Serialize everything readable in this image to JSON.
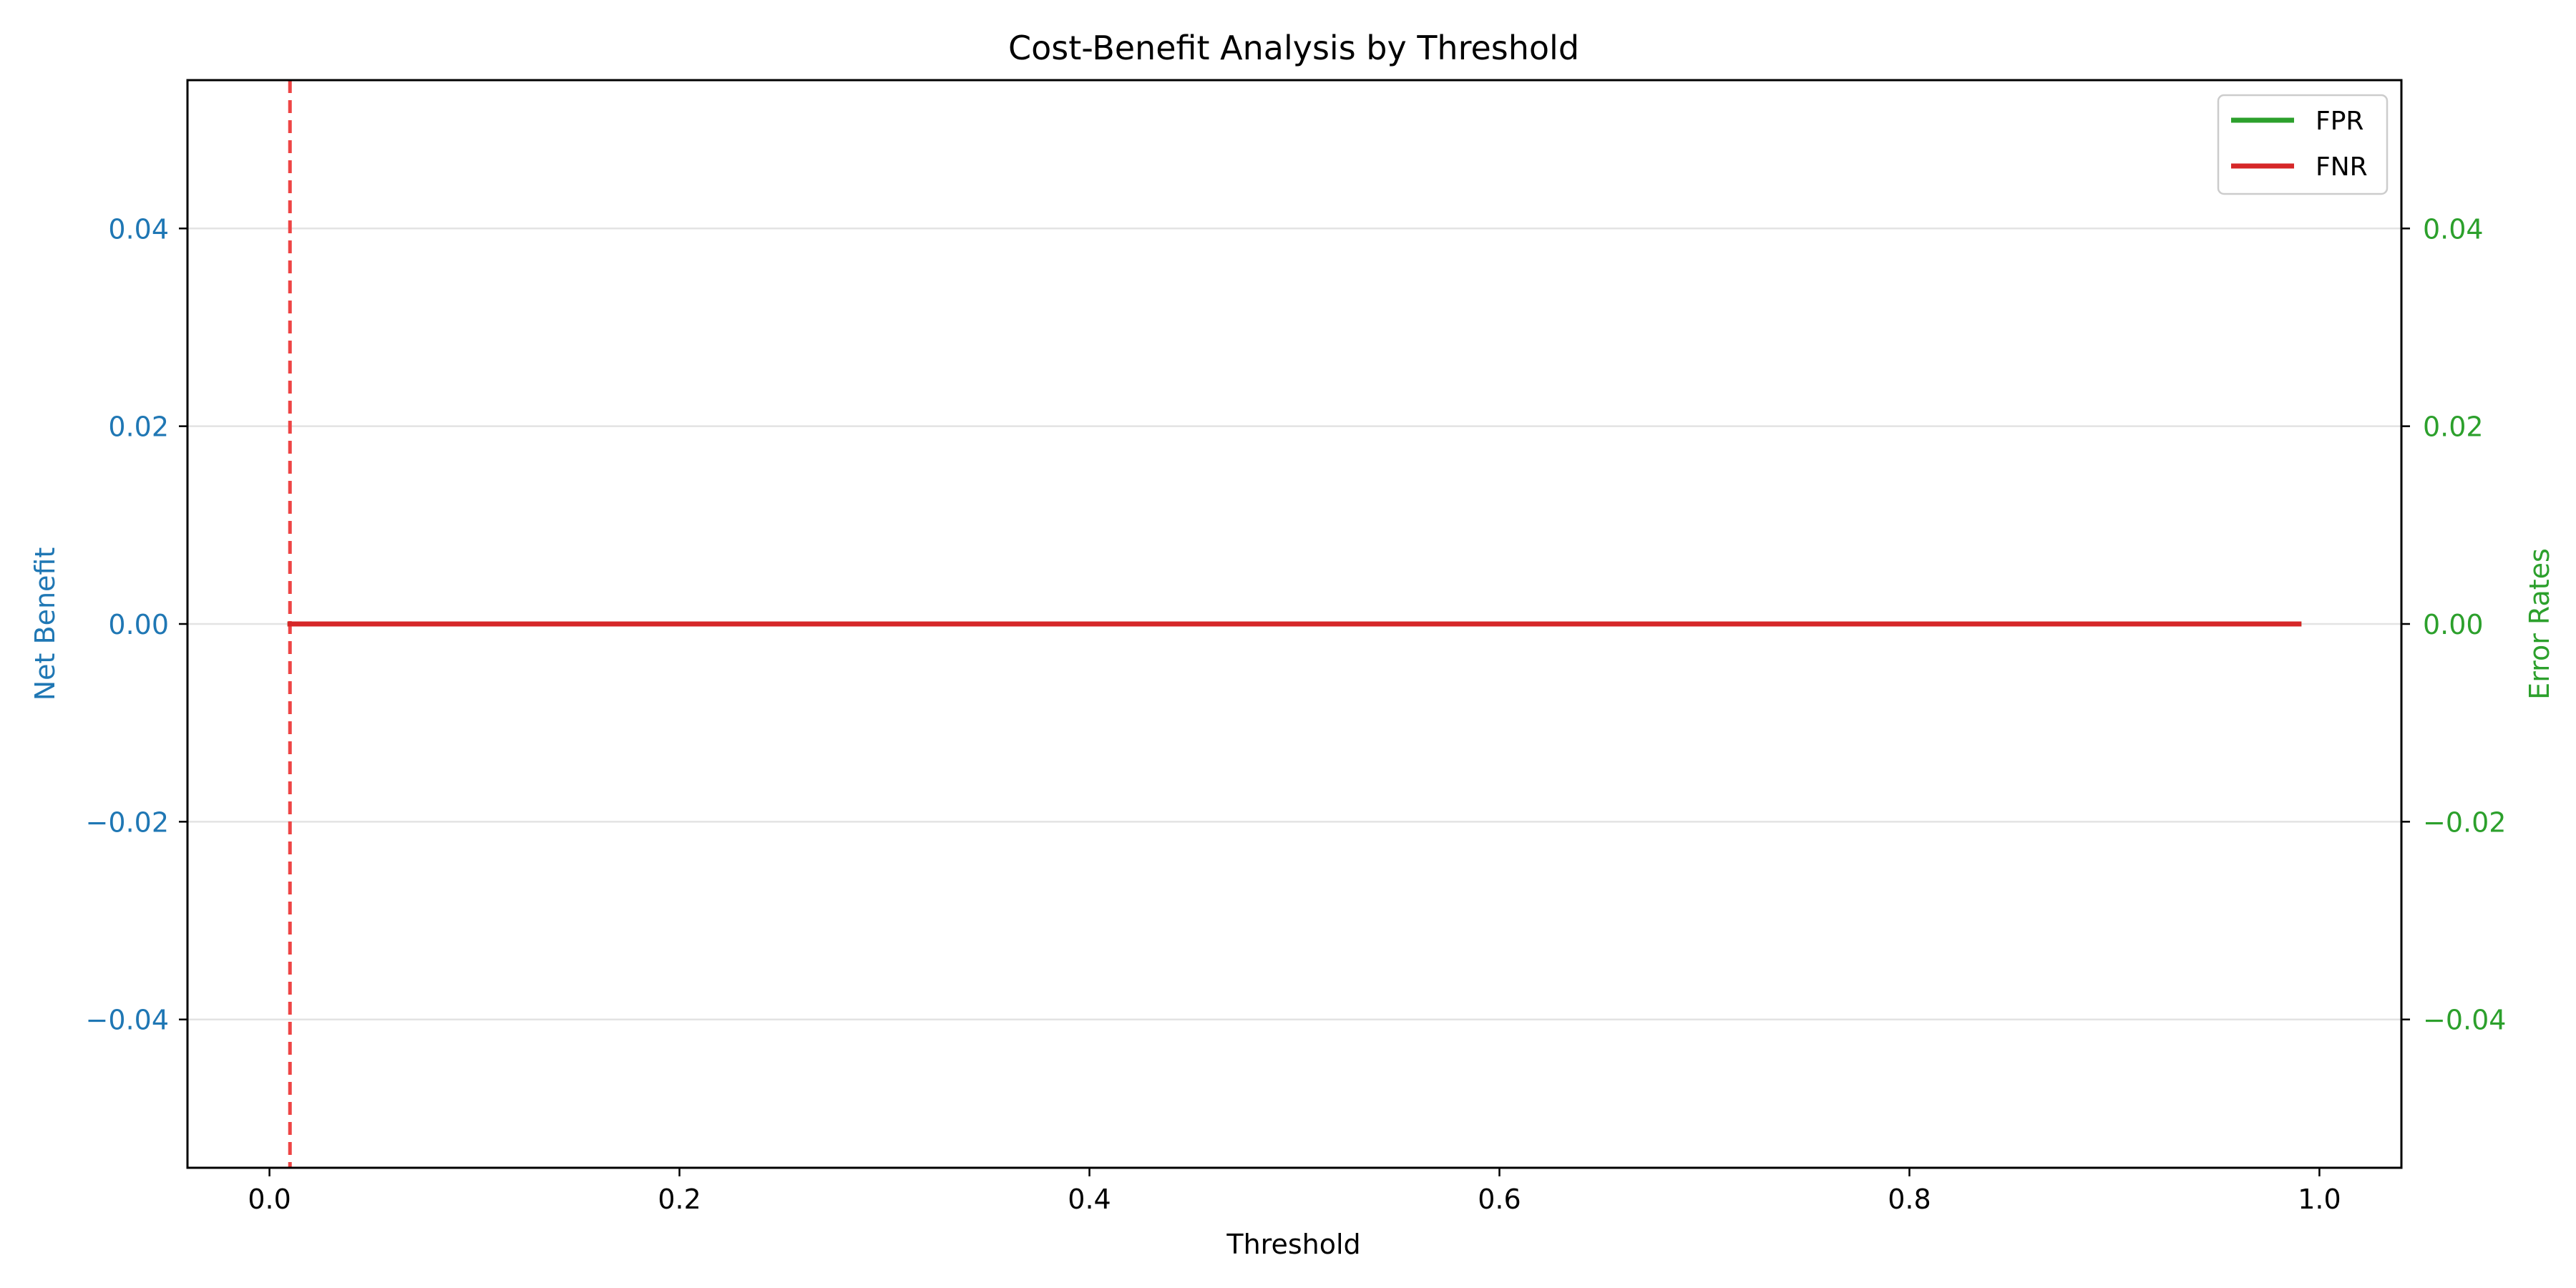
{
  "chart_data": {
    "type": "line",
    "title": "Cost-Benefit Analysis by Threshold",
    "xlabel": "Threshold",
    "ylabel_left": "Net Benefit",
    "ylabel_right": "Error Rates",
    "xlim": [
      -0.04,
      1.04
    ],
    "ylim_left": [
      -0.055,
      0.055
    ],
    "ylim_right": [
      -0.055,
      0.055
    ],
    "x_ticks": [
      0.0,
      0.2,
      0.4,
      0.6,
      0.8,
      1.0
    ],
    "x_tick_labels": [
      "0.0",
      "0.2",
      "0.4",
      "0.6",
      "0.8",
      "1.0"
    ],
    "y_ticks": [
      -0.04,
      -0.02,
      0.0,
      0.02,
      0.04
    ],
    "y_tick_labels_left": [
      "−0.04",
      "−0.02",
      "0.00",
      "0.02",
      "0.04"
    ],
    "y_tick_labels_right": [
      "−0.04",
      "−0.02",
      "0.00",
      "0.02",
      "0.04"
    ],
    "grid": "horizontal",
    "legend_position": "top-right",
    "colors": {
      "left_axis": "#1f77b4",
      "right_axis": "#2ca02c",
      "fpr": "#2ca02c",
      "fnr": "#d62728",
      "optimal_line": "#ee4444"
    },
    "vertical_marker": {
      "x": 0.01,
      "style": "dashed"
    },
    "series": [
      {
        "name": "FPR",
        "axis": "right",
        "x": [
          0.01,
          0.99
        ],
        "y": [
          0.0,
          0.0
        ]
      },
      {
        "name": "FNR",
        "axis": "right",
        "x": [
          0.01,
          0.99
        ],
        "y": [
          0.0,
          0.0
        ]
      }
    ]
  }
}
